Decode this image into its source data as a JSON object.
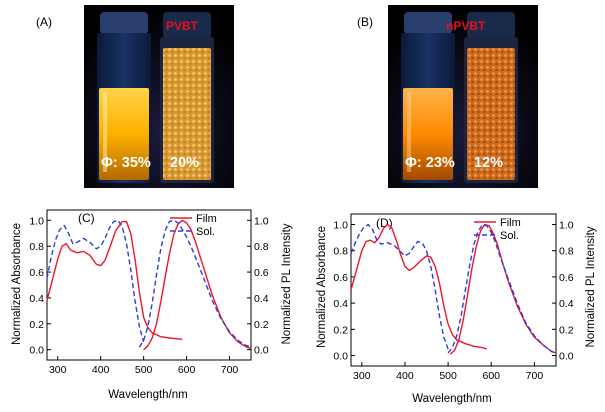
{
  "photos": [
    {
      "tag": "(A)",
      "title": "PVBT",
      "yield_solution": "Φ: 35%",
      "yield_solid": "20%",
      "emission_color": "#ffb400",
      "powder_color": "#e0a23a",
      "glow_color": "#ffd24d"
    },
    {
      "tag": "(B)",
      "title": "nPVBT",
      "yield_solution": "Φ: 23%",
      "yield_solid": "12%",
      "emission_color": "#ff8a00",
      "powder_color": "#d2711f",
      "glow_color": "#ffb44a"
    }
  ],
  "chart_data": [
    {
      "type": "line",
      "tag": "(C)",
      "xlabel": "Wavelength/nm",
      "ylabel_left": "Normalized Absorbance",
      "ylabel_right": "Normalized PL Intensity",
      "xlim": [
        275,
        750
      ],
      "ylim": [
        -0.08,
        1.08
      ],
      "x_ticks": [
        300,
        400,
        500,
        600,
        700
      ],
      "y_ticks": [
        0.0,
        0.2,
        0.4,
        0.6,
        0.8,
        1.0
      ],
      "legend": {
        "position": "top-right",
        "entries": [
          "Film",
          "Sol."
        ]
      },
      "series": [
        {
          "name": "Film",
          "kind": "absorbance",
          "color": "#e8192b",
          "dash": "solid",
          "x": [
            275,
            290,
            300,
            310,
            320,
            330,
            345,
            360,
            375,
            390,
            400,
            410,
            420,
            435,
            450,
            460,
            470,
            480,
            490,
            500,
            510,
            520,
            540,
            560,
            590
          ],
          "y": [
            0.38,
            0.57,
            0.7,
            0.8,
            0.82,
            0.77,
            0.75,
            0.76,
            0.73,
            0.66,
            0.65,
            0.69,
            0.78,
            0.92,
            0.99,
            0.99,
            0.9,
            0.7,
            0.45,
            0.25,
            0.17,
            0.13,
            0.1,
            0.09,
            0.08
          ]
        },
        {
          "name": "Film",
          "kind": "pl",
          "color": "#e8192b",
          "dash": "solid",
          "x": [
            500,
            510,
            520,
            530,
            540,
            550,
            560,
            570,
            580,
            590,
            600,
            610,
            620,
            640,
            660,
            680,
            700,
            720,
            740,
            750
          ],
          "y": [
            0.0,
            0.03,
            0.09,
            0.2,
            0.37,
            0.56,
            0.74,
            0.89,
            0.97,
            1.0,
            0.98,
            0.93,
            0.84,
            0.63,
            0.42,
            0.25,
            0.13,
            0.06,
            0.02,
            0.01
          ]
        },
        {
          "name": "Sol.",
          "kind": "absorbance",
          "color": "#2b3ddb",
          "dash": "dashed",
          "x": [
            275,
            285,
            295,
            305,
            315,
            325,
            335,
            345,
            360,
            375,
            390,
            400,
            410,
            420,
            430,
            440,
            450,
            460,
            470,
            480,
            490,
            500
          ],
          "y": [
            0.55,
            0.72,
            0.85,
            0.93,
            0.96,
            0.9,
            0.82,
            0.83,
            0.86,
            0.83,
            0.78,
            0.8,
            0.86,
            0.94,
            0.99,
            1.0,
            0.95,
            0.82,
            0.62,
            0.38,
            0.18,
            0.06
          ]
        },
        {
          "name": "Sol.",
          "kind": "pl",
          "color": "#2b3ddb",
          "dash": "dashed",
          "x": [
            490,
            500,
            510,
            520,
            530,
            540,
            550,
            560,
            570,
            580,
            590,
            600,
            610,
            620,
            640,
            660,
            680,
            700,
            720,
            740,
            750
          ],
          "y": [
            0.02,
            0.07,
            0.18,
            0.36,
            0.58,
            0.78,
            0.92,
            0.99,
            1.0,
            0.98,
            0.93,
            0.87,
            0.8,
            0.72,
            0.55,
            0.38,
            0.24,
            0.14,
            0.07,
            0.03,
            0.02
          ]
        }
      ]
    },
    {
      "type": "line",
      "tag": "(D)",
      "xlabel": "Wavelength/nm",
      "ylabel_left": "Normalized Absorbance",
      "ylabel_right": "Normalized PL Intensity",
      "xlim": [
        275,
        750
      ],
      "ylim": [
        -0.08,
        1.08
      ],
      "x_ticks": [
        300,
        400,
        500,
        600,
        700
      ],
      "y_ticks": [
        0.0,
        0.2,
        0.4,
        0.6,
        0.8,
        1.0
      ],
      "legend": {
        "position": "top-right",
        "entries": [
          "Film",
          "Sol."
        ]
      },
      "series": [
        {
          "name": "Film",
          "kind": "absorbance",
          "color": "#e8192b",
          "dash": "solid",
          "x": [
            275,
            290,
            300,
            310,
            320,
            330,
            340,
            350,
            360,
            370,
            380,
            390,
            400,
            410,
            420,
            435,
            450,
            460,
            470,
            480,
            490,
            500,
            510,
            520,
            540,
            560,
            580,
            590
          ],
          "y": [
            0.5,
            0.68,
            0.8,
            0.87,
            0.88,
            0.86,
            0.9,
            0.97,
            1.0,
            0.97,
            0.88,
            0.77,
            0.68,
            0.65,
            0.67,
            0.72,
            0.76,
            0.75,
            0.68,
            0.55,
            0.38,
            0.24,
            0.16,
            0.12,
            0.09,
            0.07,
            0.06,
            0.05
          ]
        },
        {
          "name": "Film",
          "kind": "pl",
          "color": "#e8192b",
          "dash": "solid",
          "x": [
            505,
            515,
            525,
            535,
            545,
            555,
            565,
            575,
            585,
            595,
            605,
            615,
            625,
            640,
            660,
            680,
            700,
            720,
            740,
            750
          ],
          "y": [
            0.01,
            0.04,
            0.12,
            0.27,
            0.46,
            0.66,
            0.83,
            0.95,
            1.0,
            0.99,
            0.93,
            0.84,
            0.72,
            0.56,
            0.38,
            0.24,
            0.14,
            0.08,
            0.03,
            0.02
          ]
        },
        {
          "name": "Sol.",
          "kind": "absorbance",
          "color": "#2b3ddb",
          "dash": "dashed",
          "x": [
            275,
            285,
            295,
            305,
            315,
            325,
            335,
            345,
            360,
            375,
            390,
            400,
            410,
            420,
            430,
            440,
            450,
            460,
            470,
            480,
            490,
            500
          ],
          "y": [
            0.78,
            0.86,
            0.93,
            0.98,
            1.0,
            0.96,
            0.88,
            0.85,
            0.86,
            0.84,
            0.79,
            0.76,
            0.78,
            0.83,
            0.87,
            0.86,
            0.8,
            0.68,
            0.5,
            0.3,
            0.14,
            0.05
          ]
        },
        {
          "name": "Sol.",
          "kind": "pl",
          "color": "#2b3ddb",
          "dash": "dashed",
          "x": [
            500,
            510,
            520,
            530,
            540,
            550,
            560,
            570,
            580,
            590,
            600,
            610,
            620,
            640,
            660,
            680,
            700,
            720,
            740,
            750
          ],
          "y": [
            0.02,
            0.06,
            0.15,
            0.3,
            0.5,
            0.69,
            0.85,
            0.95,
            1.0,
            0.99,
            0.94,
            0.86,
            0.76,
            0.58,
            0.4,
            0.25,
            0.15,
            0.08,
            0.03,
            0.02
          ]
        }
      ]
    }
  ]
}
